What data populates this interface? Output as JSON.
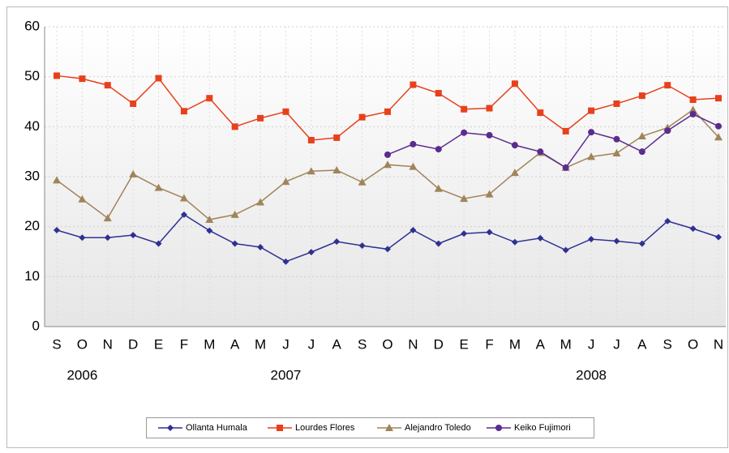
{
  "chart_data": {
    "type": "line",
    "categories": [
      "S",
      "O",
      "N",
      "D",
      "E",
      "F",
      "M",
      "A",
      "M",
      "J",
      "J",
      "A",
      "S",
      "O",
      "N",
      "D",
      "E",
      "F",
      "M",
      "A",
      "M",
      "J",
      "J",
      "A",
      "S",
      "O",
      "N"
    ],
    "years": [
      null,
      "2006",
      null,
      null,
      null,
      null,
      null,
      null,
      null,
      "2007",
      null,
      null,
      null,
      null,
      null,
      null,
      null,
      null,
      null,
      null,
      null,
      "2008",
      null,
      null,
      null,
      null,
      null
    ],
    "ylim": [
      0,
      60
    ],
    "yticks": [
      0,
      10,
      20,
      30,
      40,
      50,
      60
    ],
    "grid": true,
    "series": [
      {
        "name": "Ollanta Humala",
        "color": "#2e3192",
        "marker": "diamond",
        "values": [
          19.3,
          17.8,
          17.8,
          18.3,
          16.6,
          22.4,
          19.2,
          16.6,
          15.9,
          13.0,
          14.9,
          17.0,
          16.2,
          15.5,
          19.3,
          16.6,
          18.6,
          18.9,
          16.9,
          17.7,
          15.3,
          17.5,
          17.1,
          16.6,
          21.1,
          19.6,
          17.9
        ]
      },
      {
        "name": "Lourdes Flores",
        "color": "#e8401c",
        "marker": "square",
        "values": [
          50.2,
          49.6,
          48.3,
          44.6,
          49.7,
          43.1,
          45.7,
          40.0,
          41.7,
          43.0,
          37.3,
          37.8,
          41.9,
          43.0,
          48.4,
          46.7,
          43.5,
          43.7,
          48.6,
          42.8,
          39.1,
          43.2,
          44.6,
          46.2,
          48.3,
          45.4,
          45.7
        ]
      },
      {
        "name": "Alejandro Toledo",
        "color": "#a0845a",
        "marker": "triangle",
        "values": [
          29.3,
          25.5,
          21.7,
          30.5,
          27.8,
          25.7,
          21.4,
          22.4,
          24.9,
          29.0,
          31.1,
          31.3,
          28.9,
          32.4,
          32.0,
          27.6,
          25.6,
          26.5,
          30.8,
          34.8,
          31.8,
          34.0,
          34.7,
          38.1,
          39.8,
          43.4,
          37.9
        ]
      },
      {
        "name": "Keiko Fujimori",
        "color": "#5b2c8e",
        "marker": "circle",
        "values": [
          null,
          null,
          null,
          null,
          null,
          null,
          null,
          null,
          null,
          null,
          null,
          null,
          null,
          34.4,
          36.5,
          35.5,
          38.8,
          38.3,
          36.3,
          35.0,
          31.8,
          38.9,
          37.5,
          35.0,
          39.2,
          42.5,
          40.1
        ]
      }
    ]
  }
}
